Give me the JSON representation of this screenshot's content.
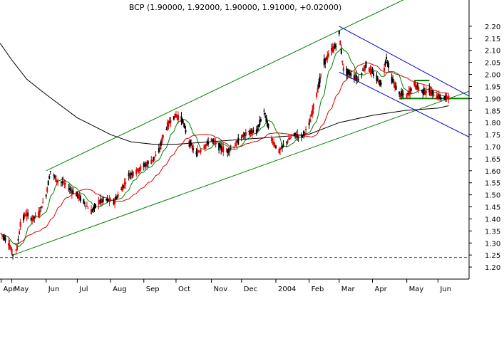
{
  "chart_data": {
    "type": "candlestick",
    "title": "BCP (1.90000, 1.92000, 1.90000, 1.91000, +0.02000)",
    "xlabel": "",
    "ylabel": "",
    "ylim": [
      1.15,
      2.25
    ],
    "xlim": [
      "2003-04-20",
      "2004-06-30"
    ],
    "y_ticks": [
      1.2,
      1.25,
      1.3,
      1.35,
      1.4,
      1.45,
      1.5,
      1.55,
      1.6,
      1.65,
      1.7,
      1.75,
      1.8,
      1.85,
      1.9,
      1.95,
      2.0,
      2.05,
      2.1,
      2.15,
      2.2
    ],
    "x_ticks": [
      {
        "label": "Apr",
        "date": "2003-04-21"
      },
      {
        "label": "May",
        "date": "2003-05-01"
      },
      {
        "label": "Jun",
        "date": "2003-06-02"
      },
      {
        "label": "Jul",
        "date": "2003-07-01"
      },
      {
        "label": "Aug",
        "date": "2003-08-01"
      },
      {
        "label": "Sep",
        "date": "2003-09-01"
      },
      {
        "label": "Oct",
        "date": "2003-10-01"
      },
      {
        "label": "Nov",
        "date": "2003-11-03"
      },
      {
        "label": "Dec",
        "date": "2003-12-01"
      },
      {
        "label": "2004",
        "date": "2004-01-02"
      },
      {
        "label": "Feb",
        "date": "2004-02-02"
      },
      {
        "label": "Mar",
        "date": "2004-03-01"
      },
      {
        "label": "Apr",
        "date": "2004-04-01"
      },
      {
        "label": "May",
        "date": "2004-05-03"
      },
      {
        "label": "Jun",
        "date": "2004-06-01"
      }
    ],
    "price_path": [
      [
        "2003-04-21",
        1.34
      ],
      [
        "2003-04-28",
        1.3
      ],
      [
        "2003-05-02",
        1.25
      ],
      [
        "2003-05-06",
        1.28
      ],
      [
        "2003-05-09",
        1.38
      ],
      [
        "2003-05-14",
        1.42
      ],
      [
        "2003-05-20",
        1.4
      ],
      [
        "2003-05-26",
        1.42
      ],
      [
        "2003-06-02",
        1.5
      ],
      [
        "2003-06-06",
        1.6
      ],
      [
        "2003-06-12",
        1.56
      ],
      [
        "2003-06-18",
        1.55
      ],
      [
        "2003-06-25",
        1.52
      ],
      [
        "2003-07-01",
        1.5
      ],
      [
        "2003-07-07",
        1.47
      ],
      [
        "2003-07-14",
        1.43
      ],
      [
        "2003-07-21",
        1.47
      ],
      [
        "2003-07-28",
        1.48
      ],
      [
        "2003-08-04",
        1.47
      ],
      [
        "2003-08-11",
        1.52
      ],
      [
        "2003-08-18",
        1.58
      ],
      [
        "2003-08-25",
        1.6
      ],
      [
        "2003-09-01",
        1.62
      ],
      [
        "2003-09-08",
        1.64
      ],
      [
        "2003-09-15",
        1.68
      ],
      [
        "2003-09-20",
        1.76
      ],
      [
        "2003-09-26",
        1.81
      ],
      [
        "2003-10-01",
        1.83
      ],
      [
        "2003-10-07",
        1.81
      ],
      [
        "2003-10-13",
        1.72
      ],
      [
        "2003-10-20",
        1.67
      ],
      [
        "2003-10-27",
        1.7
      ],
      [
        "2003-11-03",
        1.73
      ],
      [
        "2003-11-10",
        1.7
      ],
      [
        "2003-11-17",
        1.68
      ],
      [
        "2003-11-24",
        1.7
      ],
      [
        "2003-12-01",
        1.74
      ],
      [
        "2003-12-08",
        1.76
      ],
      [
        "2003-12-15",
        1.76
      ],
      [
        "2003-12-22",
        1.85
      ],
      [
        "2003-12-29",
        1.73
      ],
      [
        "2004-01-05",
        1.68
      ],
      [
        "2004-01-12",
        1.72
      ],
      [
        "2004-01-19",
        1.75
      ],
      [
        "2004-01-26",
        1.74
      ],
      [
        "2004-02-02",
        1.79
      ],
      [
        "2004-02-09",
        1.92
      ],
      [
        "2004-02-16",
        2.05
      ],
      [
        "2004-02-23",
        2.1
      ],
      [
        "2004-02-27",
        2.12
      ],
      [
        "2004-03-01",
        2.17
      ],
      [
        "2004-03-05",
        2.02
      ],
      [
        "2004-03-12",
        2.0
      ],
      [
        "2004-03-19",
        1.98
      ],
      [
        "2004-03-26",
        2.04
      ],
      [
        "2004-04-02",
        2.0
      ],
      [
        "2004-04-09",
        1.96
      ],
      [
        "2004-04-14",
        2.07
      ],
      [
        "2004-04-19",
        1.98
      ],
      [
        "2004-04-26",
        1.92
      ],
      [
        "2004-05-03",
        1.91
      ],
      [
        "2004-05-10",
        1.96
      ],
      [
        "2004-05-17",
        1.93
      ],
      [
        "2004-05-24",
        1.93
      ],
      [
        "2004-05-31",
        1.91
      ],
      [
        "2004-06-07",
        1.9
      ],
      [
        "2004-06-11",
        1.91
      ]
    ],
    "ma_black": [
      [
        "2003-04-20",
        2.13
      ],
      [
        "2003-05-01",
        2.06
      ],
      [
        "2003-05-15",
        1.98
      ],
      [
        "2003-06-01",
        1.92
      ],
      [
        "2003-07-01",
        1.82
      ],
      [
        "2003-08-01",
        1.75
      ],
      [
        "2003-08-20",
        1.72
      ],
      [
        "2003-09-10",
        1.71
      ],
      [
        "2003-10-01",
        1.71
      ],
      [
        "2003-11-01",
        1.72
      ],
      [
        "2003-12-01",
        1.73
      ],
      [
        "2004-01-01",
        1.74
      ],
      [
        "2004-02-01",
        1.75
      ],
      [
        "2004-03-01",
        1.8
      ],
      [
        "2004-04-01",
        1.83
      ],
      [
        "2004-05-01",
        1.85
      ],
      [
        "2004-06-01",
        1.86
      ],
      [
        "2004-06-11",
        1.87
      ]
    ],
    "trendlines": [
      {
        "color": "#008000",
        "from": [
          "2003-06-02",
          1.6
        ],
        "to": [
          "2004-06-30",
          2.44
        ]
      },
      {
        "color": "#008000",
        "from": [
          "2003-05-02",
          1.25
        ],
        "to": [
          "2004-06-30",
          1.93
        ]
      },
      {
        "color": "#0000cc",
        "from": [
          "2004-03-01",
          2.2
        ],
        "to": [
          "2004-06-30",
          1.91
        ]
      },
      {
        "color": "#0000cc",
        "from": [
          "2004-03-01",
          2.01
        ],
        "to": [
          "2004-06-30",
          1.74
        ]
      },
      {
        "color": "#008000",
        "from": [
          "2004-04-26",
          1.9
        ],
        "to": [
          "2004-06-30",
          1.9
        ]
      },
      {
        "color": "#008000",
        "from": [
          "2004-05-10",
          1.975
        ],
        "to": [
          "2004-05-24",
          1.975
        ]
      }
    ],
    "support_level": 1.24,
    "grid": false,
    "legend": "none"
  }
}
